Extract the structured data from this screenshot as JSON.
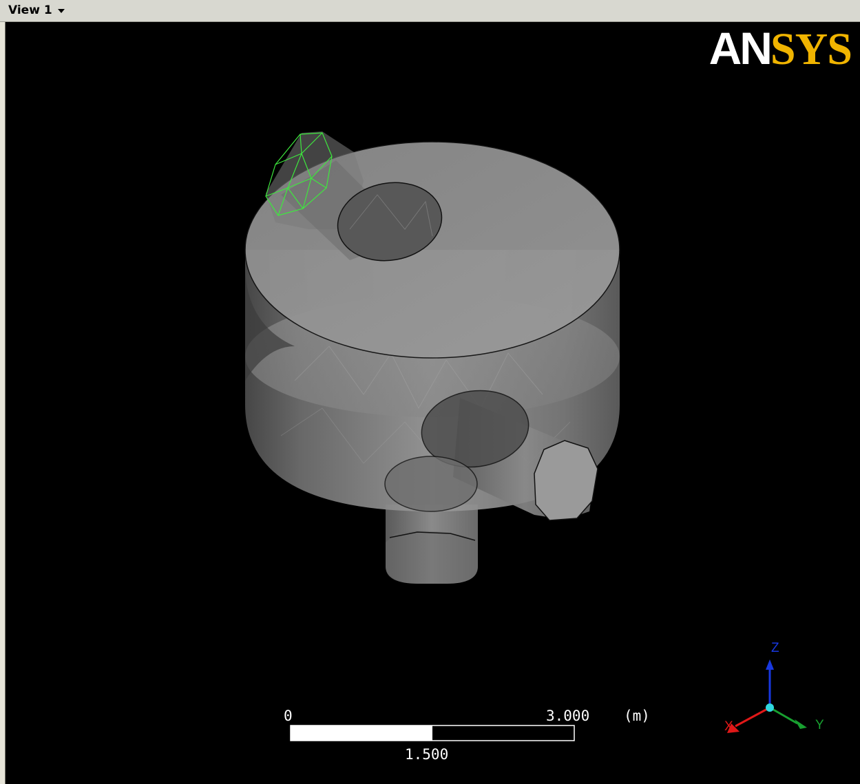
{
  "window": {
    "view_label": "View 1"
  },
  "logo": {
    "left_text": "AN",
    "right_text": "SYS",
    "color_left": "#ffffff",
    "color_right": "#f0b400"
  },
  "scale_bar": {
    "start_label": "0",
    "mid_label": "1.500",
    "end_label": "3.000",
    "unit_label": "(m)"
  },
  "triad": {
    "x_label": "X",
    "y_label": "Y",
    "z_label": "Z",
    "x_color": "#e01818",
    "y_color": "#18a030",
    "z_color": "#1838e0",
    "origin_color": "#30d8e0"
  },
  "model": {
    "body_color": "#8a8a8a",
    "edge_color": "#000000",
    "selected_face_color": "#3ee83e"
  }
}
